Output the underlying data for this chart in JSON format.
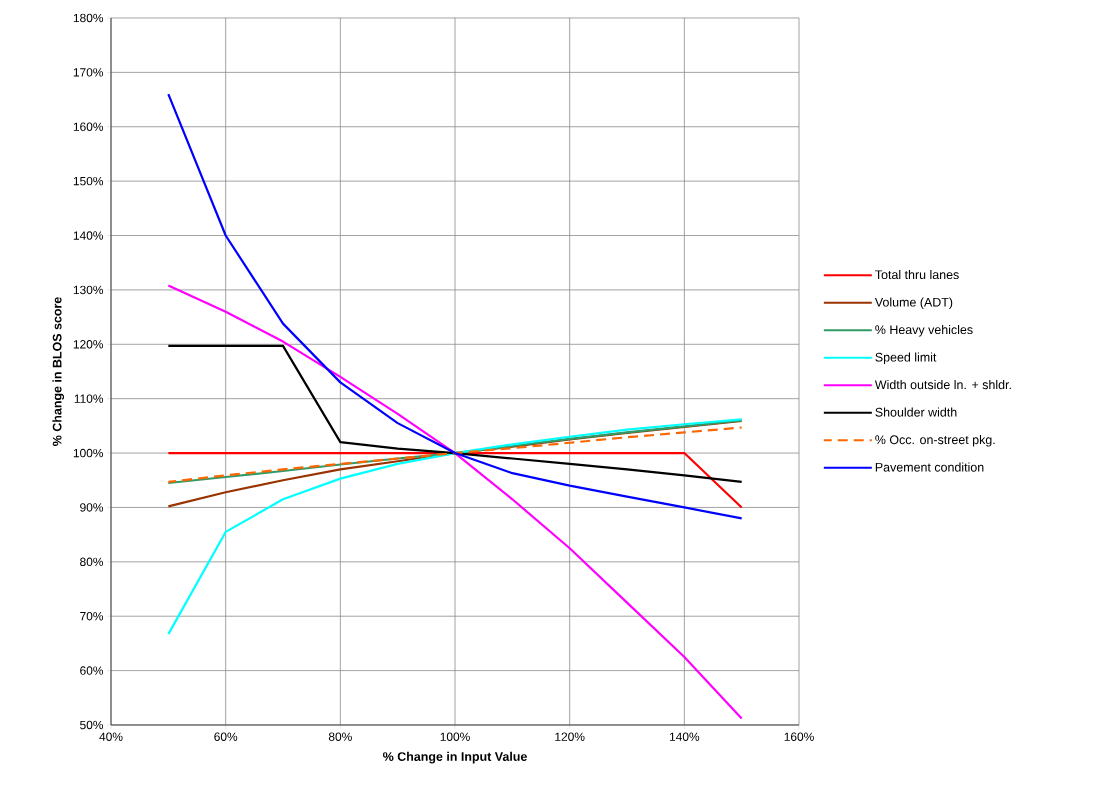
{
  "chart_data": {
    "type": "line",
    "xlabel": "% Change in Input Value",
    "ylabel": "% Change in BLOS score",
    "x": [
      50,
      60,
      70,
      80,
      90,
      100,
      110,
      120,
      130,
      140,
      150
    ],
    "xlim": [
      40,
      160
    ],
    "ylim": [
      50,
      180
    ],
    "xticks": [
      {
        "value": 40,
        "label": "40%"
      },
      {
        "value": 60,
        "label": "60%"
      },
      {
        "value": 80,
        "label": "80%"
      },
      {
        "value": 100,
        "label": "100%"
      },
      {
        "value": 120,
        "label": "120%"
      },
      {
        "value": 140,
        "label": "140%"
      },
      {
        "value": 160,
        "label": "160%"
      }
    ],
    "yticks": [
      {
        "value": 50,
        "label": "50%"
      },
      {
        "value": 60,
        "label": "60%"
      },
      {
        "value": 70,
        "label": "70%"
      },
      {
        "value": 80,
        "label": "80%"
      },
      {
        "value": 90,
        "label": "90%"
      },
      {
        "value": 100,
        "label": "100%"
      },
      {
        "value": 110,
        "label": "110%"
      },
      {
        "value": 120,
        "label": "120%"
      },
      {
        "value": 130,
        "label": "130%"
      },
      {
        "value": 140,
        "label": "140%"
      },
      {
        "value": 150,
        "label": "150%"
      },
      {
        "value": 160,
        "label": "160%"
      },
      {
        "value": 170,
        "label": "170%"
      },
      {
        "value": 180,
        "label": "180%"
      }
    ],
    "grid": true,
    "legend": "right",
    "marker": "none",
    "line_style": "solid",
    "series": [
      {
        "name": "Total thru lanes",
        "color": "#ff0000",
        "values": [
          100,
          100,
          100,
          100,
          100,
          100,
          100,
          100,
          100,
          100,
          90
        ]
      },
      {
        "name": "Volume (ADT)",
        "color": "#993300",
        "values": [
          90.2,
          92.8,
          95,
          97,
          98.5,
          100,
          101.2,
          102.5,
          103.7,
          104.8,
          105.9
        ]
      },
      {
        "name": "% Heavy vehicles",
        "color": "#339966",
        "values": [
          94.5,
          95.6,
          96.7,
          97.9,
          99,
          100,
          101.3,
          102.6,
          103.8,
          104.9,
          106
        ]
      },
      {
        "name": "Speed limit",
        "color": "#00ffff",
        "values": [
          66.7,
          85.5,
          91.5,
          95.3,
          98,
          100,
          101.6,
          103,
          104.3,
          105.3,
          106.2
        ]
      },
      {
        "name": "Width outside ln. + shldr.",
        "color": "#ff00ff",
        "values": [
          130.8,
          126,
          120.5,
          114,
          107.2,
          100,
          91.5,
          82.5,
          72.5,
          62.5,
          51.2
        ]
      },
      {
        "name": "Shoulder width",
        "color": "#000000",
        "values": [
          119.7,
          119.7,
          119.7,
          102,
          100.8,
          100,
          99,
          98,
          97,
          95.9,
          94.7
        ]
      },
      {
        "name": "% Occ. on-street pkg.",
        "color": "#ff6600",
        "line_style": "dashed",
        "values": [
          94.7,
          95.9,
          97,
          98,
          99,
          100,
          100.9,
          101.9,
          102.9,
          103.8,
          104.7
        ]
      },
      {
        "name": "Pavement condition",
        "color": "#0000ff",
        "values": [
          166,
          140,
          123.8,
          113,
          105.5,
          100,
          96.3,
          94,
          92,
          90,
          88
        ]
      }
    ]
  }
}
